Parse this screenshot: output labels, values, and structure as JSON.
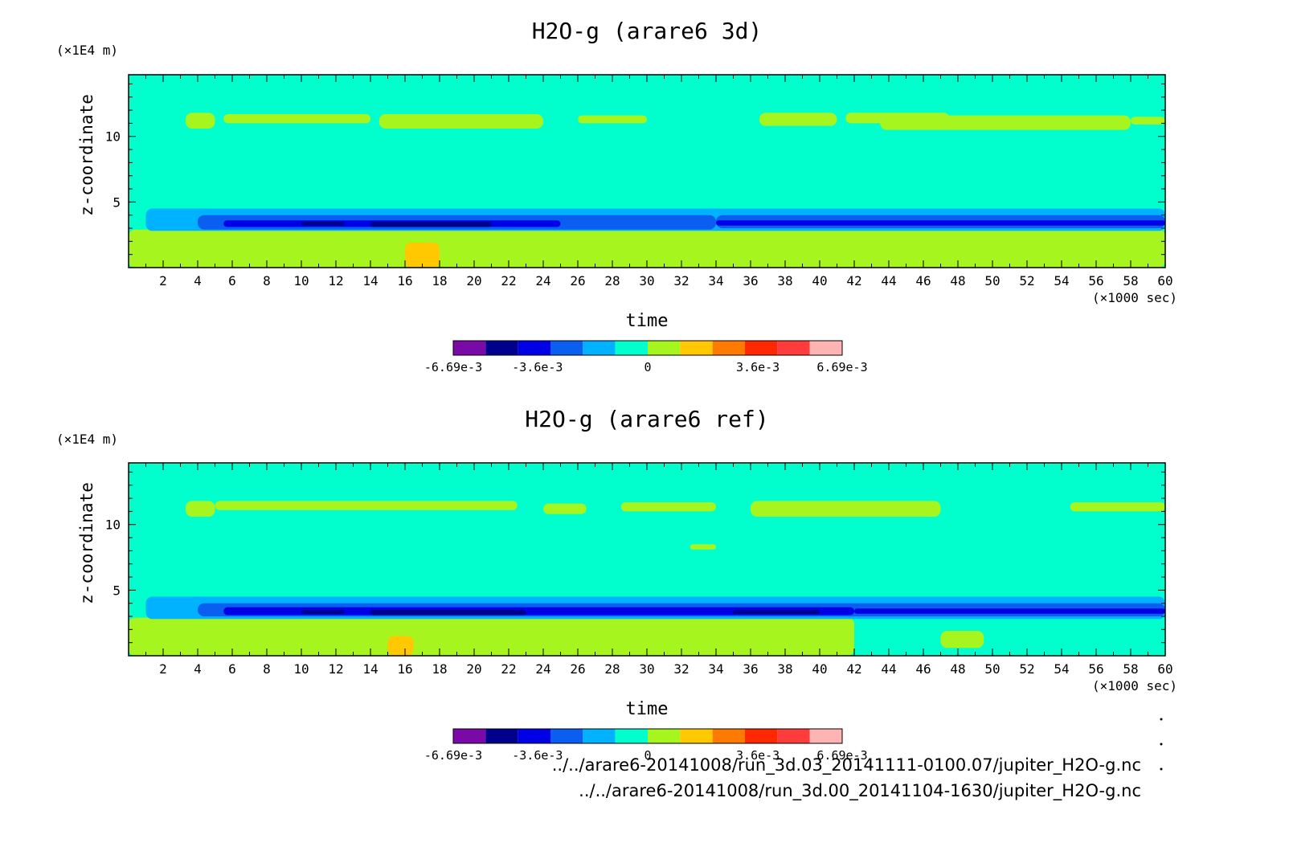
{
  "chart_data": [
    {
      "type": "heatmap",
      "title": "H2O-g (arare6 3d)",
      "xlabel": "time",
      "x_unit": "(×1000 sec)",
      "ylabel": "z-coordinate",
      "y_unit": "(×1E4 m)",
      "xlim": [
        0,
        60
      ],
      "ylim": [
        0,
        14.7
      ],
      "x_ticks": [
        "2",
        "4",
        "6",
        "8",
        "10",
        "12",
        "14",
        "16",
        "18",
        "20",
        "22",
        "24",
        "26",
        "28",
        "30",
        "32",
        "34",
        "36",
        "38",
        "40",
        "42",
        "44",
        "46",
        "48",
        "50",
        "52",
        "54",
        "56",
        "58",
        "60"
      ],
      "y_ticks": [
        "5",
        "10"
      ],
      "colorbar": {
        "colors": [
          "#7a0aa8",
          "#00008c",
          "#0000e6",
          "#0a5ff0",
          "#00b2ff",
          "#00ffcc",
          "#a6f51e",
          "#ffc800",
          "#ff7a00",
          "#ff2800",
          "#ff3c3c",
          "#ffb4b4"
        ],
        "labels": [
          "-6.69e-3",
          "-3.6e-3",
          "0",
          "3.6e-3",
          "6.69e-3"
        ]
      },
      "layers": [
        {
          "value": "0",
          "color": "#00ffcc",
          "regions": [
            {
              "x": [
                0,
                60
              ],
              "y": [
                0,
                14.7
              ]
            }
          ]
        },
        {
          "value": "positive",
          "color": "#a6f51e",
          "regions": [
            {
              "x": [
                3.3,
                5.0
              ],
              "y": [
                10.6,
                11.8
              ]
            },
            {
              "x": [
                5.5,
                14.0
              ],
              "y": [
                11.0,
                11.7
              ]
            },
            {
              "x": [
                14.5,
                24.0
              ],
              "y": [
                10.6,
                11.7
              ]
            },
            {
              "x": [
                26.0,
                30.0
              ],
              "y": [
                11.0,
                11.6
              ]
            },
            {
              "x": [
                36.5,
                41.0
              ],
              "y": [
                10.8,
                11.8
              ]
            },
            {
              "x": [
                41.5,
                47.5
              ],
              "y": [
                11.0,
                11.8
              ]
            },
            {
              "x": [
                43.5,
                58.0
              ],
              "y": [
                10.5,
                11.6
              ]
            },
            {
              "x": [
                58.0,
                60.0
              ],
              "y": [
                10.9,
                11.5
              ]
            },
            {
              "x": [
                0.0,
                60.0
              ],
              "y": [
                0.0,
                2.9
              ]
            }
          ]
        },
        {
          "value": "negative",
          "color": "#00b2ff",
          "regions": [
            {
              "x": [
                1.0,
                60.0
              ],
              "y": [
                2.8,
                4.5
              ]
            }
          ]
        },
        {
          "value": "negative",
          "color": "#0a5ff0",
          "regions": [
            {
              "x": [
                4.0,
                34.0
              ],
              "y": [
                2.9,
                4.0
              ]
            },
            {
              "x": [
                34.0,
                60.0
              ],
              "y": [
                3.0,
                4.0
              ]
            }
          ]
        },
        {
          "value": "negative",
          "color": "#0000e6",
          "regions": [
            {
              "x": [
                5.5,
                25.0
              ],
              "y": [
                3.1,
                3.6
              ]
            },
            {
              "x": [
                34.0,
                60.0
              ],
              "y": [
                3.2,
                3.6
              ]
            }
          ]
        },
        {
          "value": "negative",
          "color": "#00008c",
          "regions": [
            {
              "x": [
                10.0,
                12.5
              ],
              "y": [
                3.2,
                3.5
              ]
            },
            {
              "x": [
                14.0,
                21.0
              ],
              "y": [
                3.1,
                3.5
              ]
            }
          ]
        },
        {
          "value": "positive",
          "color": "#ffc800",
          "regions": [
            {
              "x": [
                16.0,
                18.0
              ],
              "y": [
                0.0,
                1.9
              ]
            }
          ]
        }
      ]
    },
    {
      "type": "heatmap",
      "title": "H2O-g (arare6 ref)",
      "xlabel": "time",
      "x_unit": "(×1000 sec)",
      "ylabel": "z-coordinate",
      "y_unit": "(×1E4 m)",
      "xlim": [
        0,
        60
      ],
      "ylim": [
        0,
        14.7
      ],
      "x_ticks": [
        "2",
        "4",
        "6",
        "8",
        "10",
        "12",
        "14",
        "16",
        "18",
        "20",
        "22",
        "24",
        "26",
        "28",
        "30",
        "32",
        "34",
        "36",
        "38",
        "40",
        "42",
        "44",
        "46",
        "48",
        "50",
        "52",
        "54",
        "56",
        "58",
        "60"
      ],
      "y_ticks": [
        "5",
        "10"
      ],
      "colorbar": {
        "colors": [
          "#7a0aa8",
          "#00008c",
          "#0000e6",
          "#0a5ff0",
          "#00b2ff",
          "#00ffcc",
          "#a6f51e",
          "#ffc800",
          "#ff7a00",
          "#ff2800",
          "#ff3c3c",
          "#ffb4b4"
        ],
        "labels": [
          "-6.69e-3",
          "-3.6e-3",
          "0",
          "3.6e-3",
          "6.69e-3"
        ]
      },
      "layers": [
        {
          "value": "0",
          "color": "#00ffcc",
          "regions": [
            {
              "x": [
                0,
                60
              ],
              "y": [
                0,
                14.7
              ]
            }
          ]
        },
        {
          "value": "positive",
          "color": "#a6f51e",
          "regions": [
            {
              "x": [
                3.3,
                5.0
              ],
              "y": [
                10.6,
                11.8
              ]
            },
            {
              "x": [
                5.0,
                22.5
              ],
              "y": [
                11.1,
                11.8
              ]
            },
            {
              "x": [
                24.0,
                26.5
              ],
              "y": [
                10.8,
                11.6
              ]
            },
            {
              "x": [
                28.5,
                34.0
              ],
              "y": [
                11.0,
                11.7
              ]
            },
            {
              "x": [
                36.0,
                47.0
              ],
              "y": [
                10.6,
                11.8
              ]
            },
            {
              "x": [
                54.5,
                60.0
              ],
              "y": [
                11.0,
                11.7
              ]
            },
            {
              "x": [
                32.5,
                34.0
              ],
              "y": [
                8.1,
                8.5
              ]
            },
            {
              "x": [
                0.0,
                42.0
              ],
              "y": [
                0.0,
                2.9
              ]
            },
            {
              "x": [
                47.0,
                49.5
              ],
              "y": [
                0.6,
                1.9
              ]
            }
          ]
        },
        {
          "value": "negative",
          "color": "#00b2ff",
          "regions": [
            {
              "x": [
                1.0,
                60.0
              ],
              "y": [
                2.8,
                4.5
              ]
            }
          ]
        },
        {
          "value": "negative",
          "color": "#0a5ff0",
          "regions": [
            {
              "x": [
                4.0,
                60.0
              ],
              "y": [
                3.0,
                4.0
              ]
            }
          ]
        },
        {
          "value": "negative",
          "color": "#0000e6",
          "regions": [
            {
              "x": [
                5.5,
                42.0
              ],
              "y": [
                3.1,
                3.7
              ]
            },
            {
              "x": [
                42.0,
                60.0
              ],
              "y": [
                3.2,
                3.6
              ]
            }
          ]
        },
        {
          "value": "negative",
          "color": "#00008c",
          "regions": [
            {
              "x": [
                10.0,
                12.5
              ],
              "y": [
                3.2,
                3.5
              ]
            },
            {
              "x": [
                14.0,
                23.0
              ],
              "y": [
                3.1,
                3.5
              ]
            },
            {
              "x": [
                35.0,
                40.0
              ],
              "y": [
                3.2,
                3.5
              ]
            }
          ]
        },
        {
          "value": "positive",
          "color": "#ffc800",
          "regions": [
            {
              "x": [
                15.0,
                16.5
              ],
              "y": [
                0.0,
                1.5
              ]
            }
          ]
        }
      ]
    }
  ],
  "footer": {
    "path_1": "../../arare6-20141008/run_3d.03_20141111-0100.07/jupiter_H2O-g.nc",
    "path_2": "../../arare6-20141008/run_3d.00_20141104-1630/jupiter_H2O-g.nc"
  }
}
